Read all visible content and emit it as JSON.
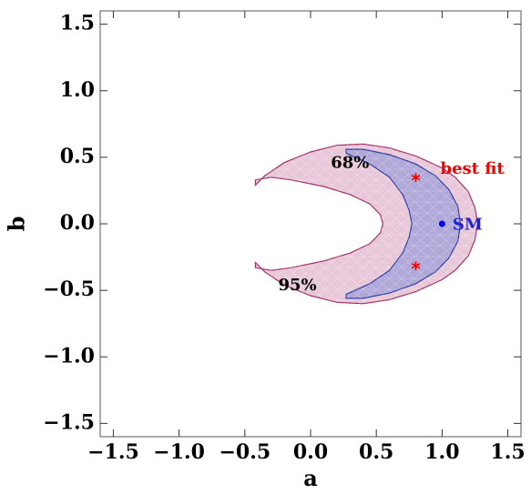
{
  "chart_data": {
    "type": "contour",
    "xlabel": "a",
    "ylabel": "b",
    "xlim": [
      -1.6,
      1.6
    ],
    "ylim": [
      -1.6,
      1.6
    ],
    "xticks": [
      -1.5,
      -1.0,
      -0.5,
      0.0,
      0.5,
      1.0,
      1.5
    ],
    "yticks": [
      -1.5,
      -1.0,
      -0.5,
      0.0,
      0.5,
      1.0,
      1.5
    ],
    "xtick_labels": [
      "−1.5",
      "−1.0",
      "−0.5",
      "0.0",
      "0.5",
      "1.0",
      "1.5"
    ],
    "ytick_labels": [
      "−1.5",
      "−1.0",
      "−0.5",
      "0.0",
      "0.5",
      "1.0",
      "1.5"
    ],
    "grid": false,
    "regions": [
      {
        "label": "95%",
        "color": "#e8c8d8",
        "stroke": "#a0306a",
        "label_pos": [
          -0.1,
          -0.5
        ],
        "boundary": [
          [
            -0.42,
            0.29
          ],
          [
            -0.35,
            0.36
          ],
          [
            -0.2,
            0.46
          ],
          [
            0.0,
            0.54
          ],
          [
            0.2,
            0.59
          ],
          [
            0.4,
            0.6
          ],
          [
            0.6,
            0.57
          ],
          [
            0.8,
            0.51
          ],
          [
            1.0,
            0.42
          ],
          [
            1.1,
            0.35
          ],
          [
            1.2,
            0.24
          ],
          [
            1.25,
            0.12
          ],
          [
            1.27,
            0.0
          ],
          [
            1.25,
            -0.12
          ],
          [
            1.2,
            -0.24
          ],
          [
            1.1,
            -0.35
          ],
          [
            1.0,
            -0.42
          ],
          [
            0.8,
            -0.51
          ],
          [
            0.6,
            -0.57
          ],
          [
            0.4,
            -0.6
          ],
          [
            0.2,
            -0.59
          ],
          [
            0.0,
            -0.54
          ],
          [
            -0.2,
            -0.46
          ],
          [
            -0.35,
            -0.36
          ],
          [
            -0.42,
            -0.29
          ],
          [
            -0.42,
            -0.33
          ],
          [
            -0.3,
            -0.35
          ],
          [
            -0.15,
            -0.33
          ],
          [
            0.1,
            -0.28
          ],
          [
            0.3,
            -0.22
          ],
          [
            0.45,
            -0.15
          ],
          [
            0.53,
            -0.07
          ],
          [
            0.55,
            0.0
          ],
          [
            0.53,
            0.07
          ],
          [
            0.45,
            0.15
          ],
          [
            0.3,
            0.22
          ],
          [
            0.1,
            0.28
          ],
          [
            -0.15,
            0.33
          ],
          [
            -0.3,
            0.35
          ],
          [
            -0.42,
            0.33
          ]
        ]
      },
      {
        "label": "68%",
        "color": "#b0a8d8",
        "stroke": "#3040a0",
        "label_pos": [
          0.3,
          0.42
        ],
        "boundary": [
          [
            0.27,
            0.56
          ],
          [
            0.4,
            0.56
          ],
          [
            0.6,
            0.52
          ],
          [
            0.8,
            0.45
          ],
          [
            0.95,
            0.36
          ],
          [
            1.05,
            0.26
          ],
          [
            1.12,
            0.13
          ],
          [
            1.14,
            0.0
          ],
          [
            1.12,
            -0.13
          ],
          [
            1.05,
            -0.26
          ],
          [
            0.95,
            -0.36
          ],
          [
            0.8,
            -0.45
          ],
          [
            0.6,
            -0.52
          ],
          [
            0.4,
            -0.56
          ],
          [
            0.27,
            -0.56
          ],
          [
            0.27,
            -0.53
          ],
          [
            0.45,
            -0.45
          ],
          [
            0.6,
            -0.35
          ],
          [
            0.7,
            -0.22
          ],
          [
            0.75,
            -0.1
          ],
          [
            0.77,
            0.0
          ],
          [
            0.75,
            0.1
          ],
          [
            0.7,
            0.22
          ],
          [
            0.6,
            0.35
          ],
          [
            0.45,
            0.45
          ],
          [
            0.27,
            0.53
          ]
        ]
      }
    ],
    "points": [
      {
        "name": "SM",
        "x": 1.0,
        "y": 0.0,
        "marker": "dot",
        "color": "#0000ee"
      },
      {
        "name": "best fit",
        "x": 0.8,
        "y": 0.33,
        "marker": "asterisk",
        "color": "#ee0000"
      },
      {
        "name": "",
        "x": 0.8,
        "y": -0.33,
        "marker": "asterisk",
        "color": "#ee0000"
      }
    ],
    "annotations": [
      {
        "text": "best fit",
        "x": 1.23,
        "y": 0.41,
        "color": "#ee0000"
      },
      {
        "text": "SM",
        "x": 1.08,
        "y": -0.01,
        "color": "#2222cc"
      }
    ]
  }
}
